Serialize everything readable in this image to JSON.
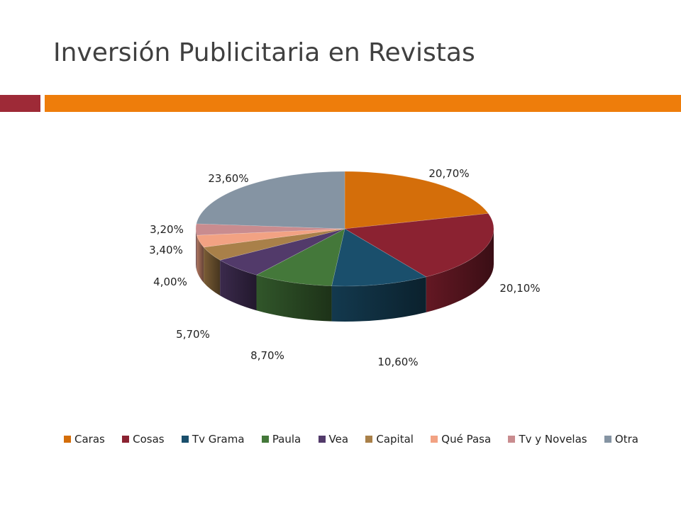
{
  "slide": {
    "title": "Inversión Publicitaria en Revistas",
    "accent_colors": [
      "#9e2a37",
      "#ee7d0b"
    ]
  },
  "chart_data": {
    "type": "pie",
    "style": "3d",
    "unit": "%",
    "legend_position": "bottom",
    "categories": [
      "Caras",
      "Cosas",
      "Tv Grama",
      "Paula",
      "Vea",
      "Capital",
      "Qué Pasa",
      "Tv y Novelas",
      "Otra"
    ],
    "values": [
      20.7,
      20.1,
      10.6,
      8.7,
      5.7,
      4.0,
      3.4,
      3.2,
      23.6
    ],
    "data_labels": [
      "20,70%",
      "20,10%",
      "10,60%",
      "8,70%",
      "5,70%",
      "4,00%",
      "3,40%",
      "3,20%",
      "23,60%"
    ],
    "colors": [
      "#d46e0a",
      "#8b2231",
      "#1a4f6c",
      "#44783a",
      "#523a6a",
      "#a98049",
      "#f2a283",
      "#c98c8f",
      "#8594a3"
    ]
  }
}
